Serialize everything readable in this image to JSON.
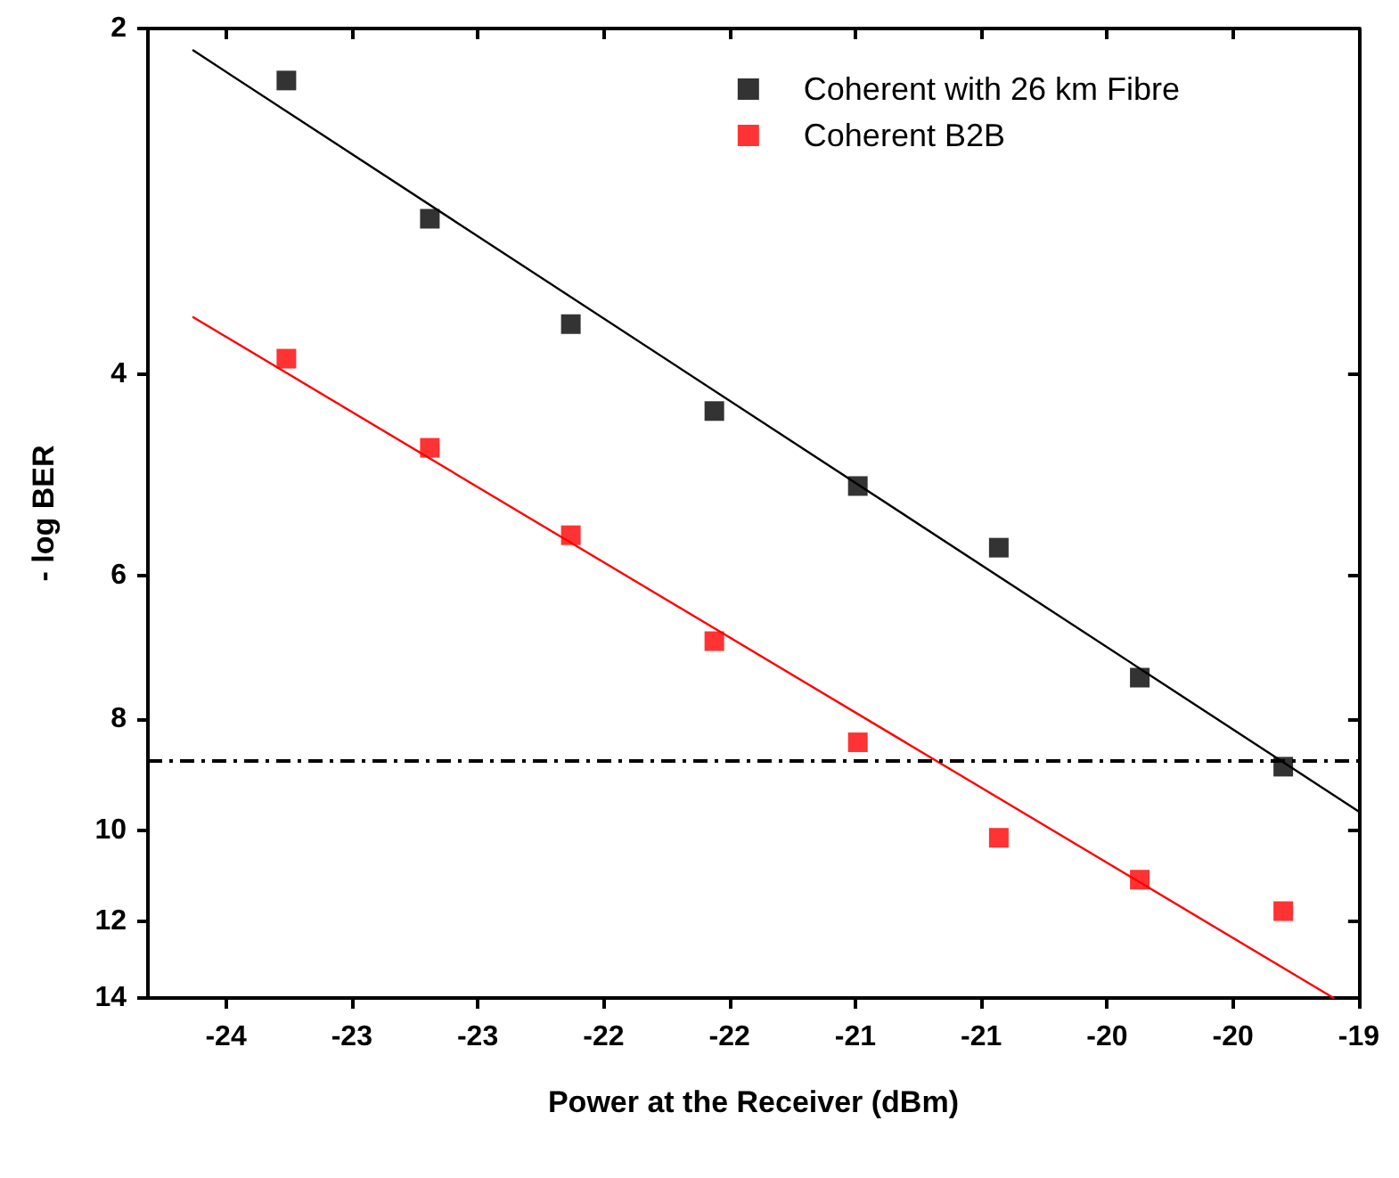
{
  "chart_data": {
    "type": "scatter",
    "xlabel": "Power at the Receiver (dBm)",
    "ylabel": "- log BER",
    "xlim": [
      -24.31,
      -19.5
    ],
    "ylim": [
      14,
      2
    ],
    "log": "y",
    "xticks": [
      {
        "value": -24,
        "label": "-24"
      },
      {
        "value": -23.5,
        "label": "-23"
      },
      {
        "value": -23,
        "label": "-23"
      },
      {
        "value": -22.5,
        "label": "-22"
      },
      {
        "value": -22,
        "label": "-22"
      },
      {
        "value": -21.5,
        "label": "-21"
      },
      {
        "value": -21,
        "label": "-21"
      },
      {
        "value": -20.5,
        "label": "-20"
      },
      {
        "value": -20,
        "label": "-20"
      },
      {
        "value": -19.5,
        "label": "-19"
      }
    ],
    "yticks": [
      2,
      4,
      6,
      8,
      10,
      12,
      14
    ],
    "x": [
      -23.76,
      -23.19,
      -22.63,
      -22.06,
      -21.49,
      -20.93,
      -20.37,
      -19.8
    ],
    "marker": "square",
    "grid": false,
    "legend": "top right",
    "series": [
      {
        "name": "Coherent with 26 km Fibre",
        "color": "#000000",
        "values": [
          2.22,
          2.93,
          3.62,
          4.31,
          5.01,
          5.67,
          7.36,
          8.8
        ]
      },
      {
        "name": "Coherent B2B",
        "color": "#ff0000",
        "values": [
          3.88,
          4.64,
          5.53,
          6.84,
          8.38,
          10.15,
          11.04,
          11.76
        ]
      },
      {
        "type": "line",
        "color": "#000000",
        "x": [
          -24.13,
          -19.5
        ],
        "values": [
          2.09,
          9.63
        ],
        "marker": "none",
        "line_style": "solid"
      },
      {
        "type": "line",
        "color": "#ff0000",
        "x": [
          -24.13,
          -19.6
        ],
        "values": [
          3.57,
          14
        ],
        "marker": "none",
        "line_style": "solid"
      }
    ],
    "ref_lines": [
      {
        "axis": "y",
        "value": 8.7,
        "label": null,
        "color": "#000000",
        "line_style": "dashdot"
      }
    ]
  }
}
